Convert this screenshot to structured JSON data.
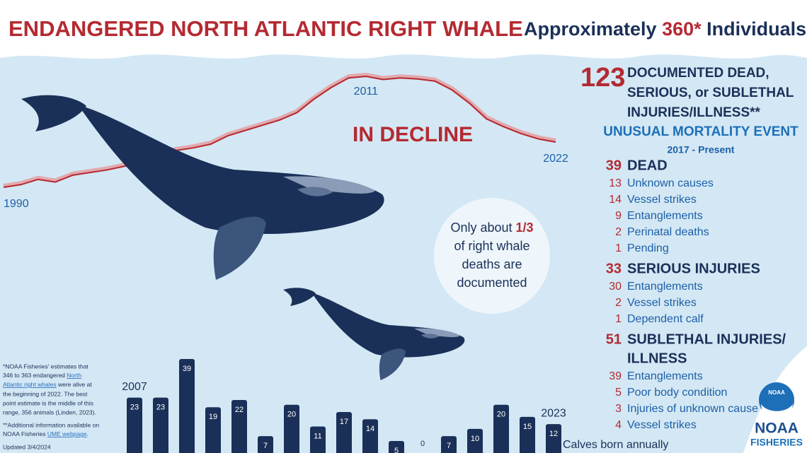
{
  "header": {
    "title": "ENDANGERED NORTH ATLANTIC RIGHT WHALE",
    "pre": "Approximately",
    "count": "360*",
    "post": "Individuals"
  },
  "decline_label": "IN DECLINE",
  "bubble": {
    "pre": "Only about",
    "fraction": "1/3",
    "lines": [
      "of right whale",
      "deaths are",
      "documented"
    ]
  },
  "mortality": {
    "total": 123,
    "headline": [
      "DOCUMENTED DEAD,",
      "SERIOUS, or SUBLETHAL",
      "INJURIES/ILLNESS**"
    ],
    "event": "UNUSUAL MORTALITY EVENT",
    "period": "2017 - Present",
    "groups": [
      {
        "count": 39,
        "label": [
          "DEAD"
        ],
        "items": [
          {
            "count": 13,
            "label": "Unknown causes"
          },
          {
            "count": 14,
            "label": "Vessel strikes"
          },
          {
            "count": 9,
            "label": "Entanglements"
          },
          {
            "count": 2,
            "label": "Perinatal deaths"
          },
          {
            "count": 1,
            "label": "Pending"
          }
        ]
      },
      {
        "count": 33,
        "label": [
          "SERIOUS INJURIES"
        ],
        "items": [
          {
            "count": 30,
            "label": "Entanglements"
          },
          {
            "count": 2,
            "label": "Vessel strikes"
          },
          {
            "count": 1,
            "label": "Dependent calf"
          }
        ]
      },
      {
        "count": 51,
        "label": [
          "SUBLETHAL INJURIES/",
          "ILLNESS"
        ],
        "items": [
          {
            "count": 39,
            "label": "Entanglements"
          },
          {
            "count": 5,
            "label": "Poor body condition"
          },
          {
            "count": 3,
            "label": "Injuries of unknown cause"
          },
          {
            "count": 4,
            "label": "Vessel strikes"
          }
        ]
      }
    ]
  },
  "notes": {
    "estimate": [
      "*NOAA Fisheries' estimates that",
      "346 to 363 endangered",
      "North",
      "Atlantic right whales",
      "were alive at",
      "the beginning of 2022. The best",
      "point estimate is the middle of this",
      "range, 356 animals (Linden, 2023)."
    ],
    "info": [
      "**Additional information available on",
      "NOAA Fisheries",
      "UME webpage",
      "."
    ],
    "updated": "Updated 3/4/2024"
  },
  "logo": {
    "badge": "NOAA",
    "name": "NOAA",
    "sub": "FISHERIES"
  },
  "chart_data": [
    {
      "type": "line",
      "color": "#b42a32",
      "x": [
        1990,
        1991,
        1992,
        1993,
        1994,
        1995,
        1996,
        1997,
        1998,
        1999,
        2000,
        2001,
        2002,
        2003,
        2004,
        2005,
        2006,
        2007,
        2008,
        2009,
        2010,
        2011,
        2012,
        2013,
        2014,
        2015,
        2016,
        2017,
        2018,
        2019,
        2020,
        2021,
        2022
      ],
      "values": [
        270,
        275,
        285,
        280,
        293,
        298,
        303,
        310,
        318,
        328,
        340,
        345,
        352,
        368,
        378,
        388,
        398,
        412,
        438,
        460,
        478,
        481,
        475,
        478,
        476,
        472,
        455,
        430,
        400,
        385,
        372,
        362,
        356
      ]
    },
    {
      "type": "bar",
      "title": "Calves born annually",
      "color": "#1b3058",
      "categories": [
        "2007",
        null,
        null,
        null,
        null,
        null,
        null,
        null,
        null,
        null,
        null,
        null,
        null,
        null,
        null,
        null,
        "2023"
      ],
      "values": [
        23,
        23,
        39,
        19,
        22,
        7,
        20,
        11,
        17,
        14,
        5,
        0,
        7,
        10,
        20,
        15,
        12
      ]
    }
  ]
}
